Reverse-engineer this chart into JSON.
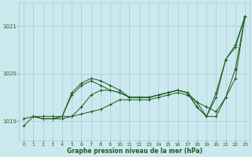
{
  "title": "Graphe pression niveau de la mer (hPa)",
  "xlim": [
    -0.5,
    23.5
  ],
  "ylim": [
    1018.6,
    1021.5
  ],
  "yticks": [
    1019,
    1020,
    1021
  ],
  "xticks": [
    0,
    1,
    2,
    3,
    4,
    5,
    6,
    7,
    8,
    9,
    10,
    11,
    12,
    13,
    14,
    15,
    16,
    17,
    18,
    19,
    20,
    21,
    22,
    23
  ],
  "bg_color": "#cce8ef",
  "grid_color": "#aacfd8",
  "line_color": "#1a5c1a",
  "series": [
    {
      "x": [
        0,
        1,
        2,
        3,
        4,
        5,
        6,
        7,
        8,
        9,
        10,
        11,
        12,
        13,
        14,
        15,
        16,
        17,
        18,
        19,
        20,
        21,
        22,
        23
      ],
      "y": [
        1018.9,
        1019.1,
        1019.1,
        1019.1,
        1019.1,
        1019.1,
        1019.15,
        1019.2,
        1019.25,
        1019.35,
        1019.45,
        1019.45,
        1019.45,
        1019.45,
        1019.5,
        1019.55,
        1019.6,
        1019.55,
        1019.4,
        1019.3,
        1019.2,
        1019.5,
        1020.1,
        1021.2
      ]
    },
    {
      "x": [
        0,
        1,
        2,
        3,
        4,
        5,
        6,
        7,
        8,
        9,
        10,
        11,
        12,
        13,
        14,
        15,
        16,
        17,
        18,
        19,
        20,
        21,
        22,
        23
      ],
      "y": [
        1019.05,
        1019.1,
        1019.05,
        1019.05,
        1019.05,
        1019.1,
        1019.3,
        1019.55,
        1019.65,
        1019.65,
        1019.6,
        1019.5,
        1019.5,
        1019.5,
        1019.55,
        1019.6,
        1019.65,
        1019.6,
        1019.3,
        1019.1,
        1019.1,
        1019.5,
        1019.9,
        1021.2
      ]
    },
    {
      "x": [
        1,
        2,
        3,
        4,
        5,
        6,
        7,
        8,
        9,
        10,
        11,
        12,
        13,
        14,
        15,
        16,
        17,
        18,
        19,
        20,
        21,
        22,
        23
      ],
      "y": [
        1019.1,
        1019.05,
        1019.05,
        1019.1,
        1019.55,
        1019.75,
        1019.85,
        1019.75,
        1019.65,
        1019.6,
        1019.5,
        1019.5,
        1019.5,
        1019.55,
        1019.6,
        1019.65,
        1019.6,
        1019.3,
        1019.1,
        1019.5,
        1020.3,
        1020.55,
        1021.2
      ]
    },
    {
      "x": [
        1,
        2,
        3,
        4,
        5,
        6,
        7,
        8,
        9,
        10,
        11,
        12,
        13,
        14,
        15,
        16,
        17,
        18,
        19,
        20,
        21,
        22,
        23
      ],
      "y": [
        1019.1,
        1019.05,
        1019.05,
        1019.1,
        1019.6,
        1019.8,
        1019.9,
        1019.85,
        1019.75,
        1019.65,
        1019.5,
        1019.5,
        1019.5,
        1019.55,
        1019.6,
        1019.65,
        1019.6,
        1019.4,
        1019.1,
        1019.6,
        1020.3,
        1020.6,
        1021.2
      ]
    }
  ]
}
